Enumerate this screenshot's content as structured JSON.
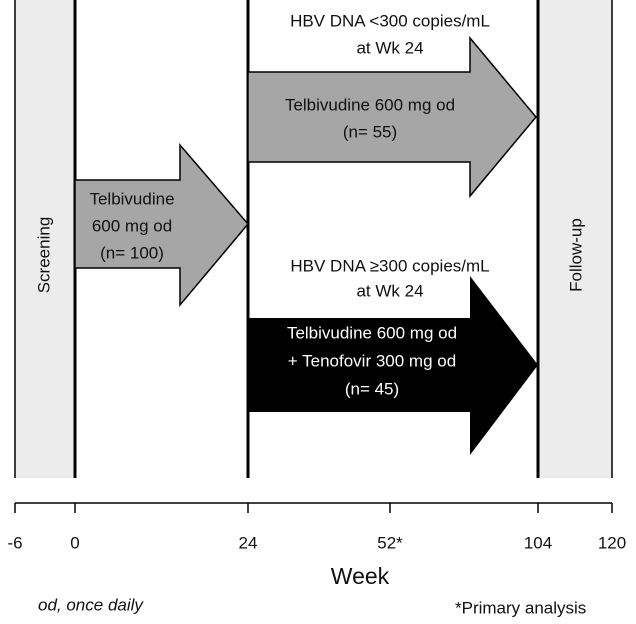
{
  "phases": {
    "screening": "Screening",
    "follow_up": "Follow-up"
  },
  "arms": [
    {
      "lines": [
        "Telbivudine",
        "600 mg od",
        "(n= 100)"
      ]
    },
    {
      "condition": [
        "HBV DNA <300 copies/mL",
        "at Wk 24"
      ],
      "lines": [
        "Telbivudine 600 mg od",
        "(n= 55)"
      ]
    },
    {
      "condition": [
        "HBV DNA ≥300 copies/mL",
        "at Wk 24"
      ],
      "lines": [
        "Telbivudine 600 mg od",
        "+ Tenofovir 300 mg od",
        "(n= 45)"
      ]
    }
  ],
  "axis": {
    "label": "Week",
    "ticks": [
      "-6",
      "0",
      "24",
      "52*",
      "104",
      "120"
    ]
  },
  "footnotes": {
    "abbreviation": "od, once daily",
    "primary": "*Primary analysis"
  }
}
